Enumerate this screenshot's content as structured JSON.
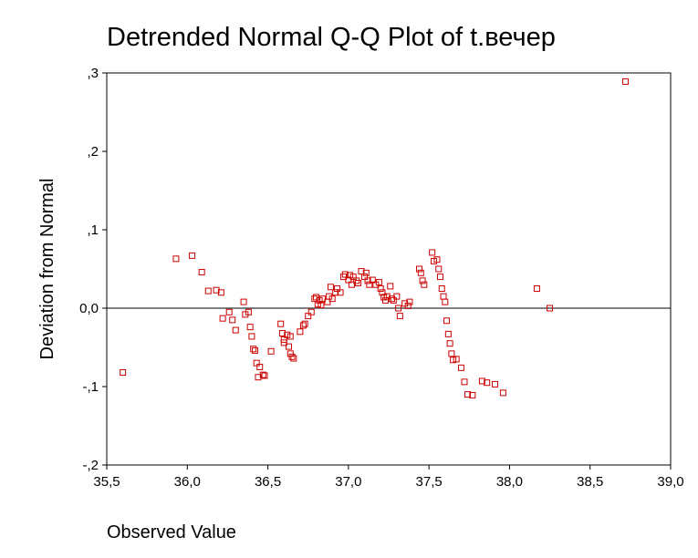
{
  "chart_data": {
    "type": "scatter",
    "title": "Detrended Normal Q-Q Plot of t.вечер",
    "xlabel": "Observed Value",
    "ylabel": "Deviation from Normal",
    "xlim": [
      35.5,
      39.0
    ],
    "ylim": [
      -0.2,
      0.3
    ],
    "xticks": [
      35.5,
      36.0,
      36.5,
      37.0,
      37.5,
      38.0,
      38.5,
      39.0
    ],
    "xtick_labels": [
      "35,5",
      "36,0",
      "36,5",
      "37,0",
      "37,5",
      "38,0",
      "38,5",
      "39,0"
    ],
    "yticks": [
      -0.2,
      -0.1,
      0.0,
      0.1,
      0.2,
      0.3
    ],
    "ytick_labels": [
      "-,2",
      "-,1",
      "0,0",
      ",1",
      ",2",
      ",3"
    ],
    "reference_line_y": 0.0,
    "grid": false,
    "colors": {
      "marker": "#cc0000",
      "axes": "#000000"
    },
    "series": [
      {
        "marker": "open-square",
        "x": [
          35.6,
          35.93,
          36.03,
          36.09,
          36.13,
          36.18,
          36.21,
          36.22,
          36.26,
          36.28,
          36.3,
          36.35,
          36.36,
          36.38,
          36.39,
          36.4,
          36.41,
          36.42,
          36.43,
          36.44,
          36.45,
          36.47,
          36.48,
          36.52,
          36.58,
          36.59,
          36.6,
          36.6,
          36.62,
          36.63,
          36.64,
          36.64,
          36.65,
          36.66,
          36.7,
          36.72,
          36.73,
          36.75,
          36.77,
          36.79,
          36.8,
          36.81,
          36.82,
          36.83,
          36.84,
          36.87,
          36.88,
          36.89,
          36.9,
          36.92,
          36.93,
          36.95,
          36.97,
          36.98,
          37.0,
          37.01,
          37.02,
          37.03,
          37.05,
          37.06,
          37.08,
          37.1,
          37.11,
          37.12,
          37.13,
          37.15,
          37.17,
          37.19,
          37.2,
          37.21,
          37.22,
          37.23,
          37.24,
          37.26,
          37.27,
          37.28,
          37.3,
          37.31,
          37.32,
          37.35,
          37.37,
          37.38,
          37.44,
          37.45,
          37.46,
          37.47,
          37.52,
          37.53,
          37.55,
          37.56,
          37.57,
          37.58,
          37.59,
          37.6,
          37.61,
          37.62,
          37.63,
          37.64,
          37.65,
          37.67,
          37.7,
          37.72,
          37.74,
          37.77,
          37.83,
          37.86,
          37.91,
          37.96,
          38.17,
          38.25,
          38.72
        ],
        "y": [
          -0.082,
          0.063,
          0.067,
          0.046,
          0.022,
          0.023,
          0.02,
          -0.013,
          -0.005,
          -0.015,
          -0.028,
          0.008,
          -0.008,
          -0.005,
          -0.024,
          -0.036,
          -0.052,
          -0.054,
          -0.07,
          -0.088,
          -0.075,
          -0.085,
          -0.086,
          -0.055,
          -0.02,
          -0.032,
          -0.044,
          -0.04,
          -0.034,
          -0.049,
          -0.036,
          -0.058,
          -0.062,
          -0.064,
          -0.03,
          -0.022,
          -0.02,
          -0.01,
          -0.005,
          0.012,
          0.014,
          0.005,
          0.01,
          0.004,
          0.012,
          0.008,
          0.015,
          0.027,
          0.012,
          0.02,
          0.025,
          0.02,
          0.04,
          0.043,
          0.036,
          0.042,
          0.03,
          0.04,
          0.035,
          0.032,
          0.047,
          0.04,
          0.045,
          0.035,
          0.03,
          0.036,
          0.03,
          0.033,
          0.025,
          0.02,
          0.014,
          0.01,
          0.015,
          0.028,
          0.012,
          0.01,
          0.015,
          0.0,
          -0.01,
          0.006,
          0.003,
          0.008,
          0.05,
          0.045,
          0.035,
          0.03,
          0.071,
          0.06,
          0.062,
          0.05,
          0.04,
          0.025,
          0.015,
          0.008,
          -0.016,
          -0.033,
          -0.045,
          -0.058,
          -0.066,
          -0.065,
          -0.076,
          -0.094,
          -0.11,
          -0.111,
          -0.093,
          -0.095,
          -0.097,
          -0.108,
          0.025,
          0.0,
          0.289
        ]
      }
    ]
  }
}
